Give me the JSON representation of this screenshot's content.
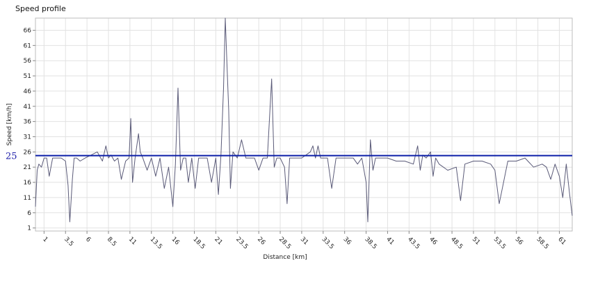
{
  "chart_data": {
    "type": "line",
    "title": "Speed profile",
    "xlabel": "Distance [km]",
    "ylabel": "Speed [km/h]",
    "xlim": [
      0,
      62.5
    ],
    "ylim": [
      0,
      70
    ],
    "x_ticks": [
      "1",
      "3.5",
      "6",
      "8.5",
      "11",
      "13.5",
      "16",
      "18.5",
      "21",
      "23.5",
      "26",
      "28.5",
      "31",
      "33.5",
      "36",
      "38.5",
      "41",
      "43.5",
      "46",
      "48.5",
      "51",
      "53.5",
      "56",
      "58.5",
      "61"
    ],
    "y_ticks": [
      "1",
      "6",
      "11",
      "16",
      "21",
      "26",
      "31",
      "36",
      "41",
      "46",
      "51",
      "56",
      "61",
      "66"
    ],
    "grid": true,
    "reference_line": {
      "label": "25",
      "value": 24.8,
      "color": "#0b1ea8"
    },
    "series": [
      {
        "color": "#5a5a78",
        "x": [
          0,
          0.2,
          0.4,
          0.7,
          1.0,
          1.3,
          1.6,
          2.0,
          2.5,
          3.0,
          3.5,
          3.8,
          4.0,
          4.3,
          4.5,
          4.8,
          5.2,
          5.8,
          6.5,
          7.2,
          7.8,
          8.2,
          8.5,
          8.8,
          9.2,
          9.6,
          10.0,
          10.5,
          10.9,
          11.1,
          11.3,
          11.6,
          12.0,
          12.2,
          12.5,
          13.0,
          13.5,
          14.0,
          14.5,
          15.0,
          15.5,
          16.0,
          16.3,
          16.6,
          16.9,
          17.2,
          17.5,
          17.8,
          18.2,
          18.6,
          19.0,
          19.5,
          20.0,
          20.5,
          21.0,
          21.3,
          21.6,
          21.9,
          22.1,
          22.3,
          22.5,
          22.7,
          23.0,
          23.5,
          24.0,
          24.5,
          25.0,
          25.5,
          26.0,
          26.5,
          27.0,
          27.5,
          27.8,
          28.1,
          28.5,
          29.0,
          29.3,
          29.6,
          30.0,
          31.0,
          32.0,
          32.3,
          32.6,
          32.9,
          33.2,
          33.5,
          34.0,
          34.5,
          35.0,
          36.0,
          37.0,
          37.5,
          38.0,
          38.5,
          38.7,
          39.0,
          39.3,
          39.6,
          40.0,
          41.0,
          42.0,
          43.0,
          44.0,
          44.5,
          44.8,
          45.1,
          45.5,
          46.0,
          46.3,
          46.6,
          47.0,
          48.0,
          49.0,
          49.5,
          50.0,
          51.0,
          52.0,
          53.0,
          53.5,
          54.0,
          55.0,
          56.0,
          57.0,
          58.0,
          59.0,
          59.5,
          60.0,
          60.5,
          61.0,
          61.4,
          61.8,
          62.2,
          62.5
        ],
        "y": [
          8,
          20,
          22,
          21,
          24,
          24,
          18,
          24,
          24,
          24,
          23,
          15,
          3,
          17,
          24,
          24,
          23,
          24,
          25,
          26,
          23,
          28,
          24,
          25,
          23,
          24,
          17,
          23,
          24,
          37,
          16,
          24,
          32,
          26,
          24,
          20,
          24,
          18,
          24,
          14,
          21,
          8,
          22,
          47,
          20,
          24,
          24,
          16,
          24,
          14,
          24,
          24,
          24,
          16,
          24,
          12,
          25,
          47,
          70,
          55,
          40,
          14,
          26,
          24,
          30,
          24,
          24,
          24,
          20,
          24,
          24,
          50,
          21,
          24,
          24,
          21,
          9,
          24,
          24,
          24,
          26,
          28,
          24,
          28,
          24,
          24,
          24,
          14,
          24,
          24,
          24,
          22,
          24,
          16,
          3,
          30,
          20,
          24,
          24,
          24,
          23,
          23,
          22,
          28,
          20,
          25,
          24,
          26,
          18,
          24,
          22,
          20,
          21,
          10,
          22,
          23,
          23,
          22,
          20,
          9,
          23,
          23,
          24,
          21,
          22,
          21,
          17,
          22,
          18,
          11,
          22,
          12,
          5
        ]
      }
    ]
  }
}
